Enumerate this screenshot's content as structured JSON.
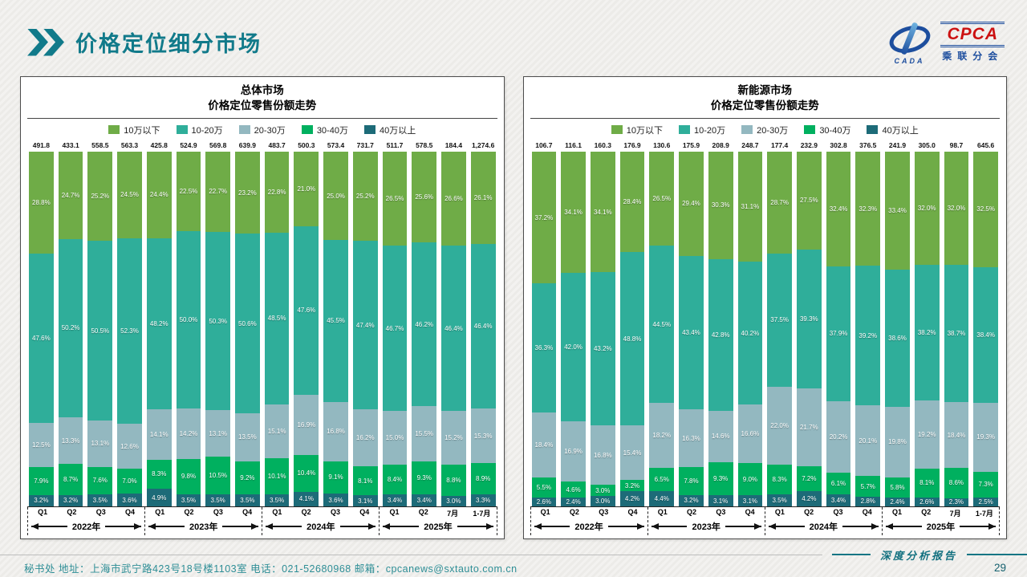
{
  "header": {
    "title": "价格定位细分市场",
    "logo": {
      "cpca": "CPCA",
      "sub_text": "乘联分会",
      "cada": "CADA"
    }
  },
  "legend": {
    "items": [
      {
        "label": "10万以下",
        "color": "#6fac47"
      },
      {
        "label": "10-20万",
        "color": "#2fae9a"
      },
      {
        "label": "20-30万",
        "color": "#93b8c0"
      },
      {
        "label": "30-40万",
        "color": "#00b05f"
      },
      {
        "label": "40万以上",
        "color": "#1d6b78"
      }
    ]
  },
  "x_axis": {
    "categories": [
      "Q1",
      "Q2",
      "Q3",
      "Q4",
      "Q1",
      "Q2",
      "Q3",
      "Q4",
      "Q1",
      "Q2",
      "Q3",
      "Q4",
      "Q1",
      "Q2",
      "7月",
      "1-7月"
    ],
    "year_groups": [
      {
        "label": "2022年"
      },
      {
        "label": "2023年"
      },
      {
        "label": "2024年"
      },
      {
        "label": "2025年"
      }
    ]
  },
  "chart_data": [
    {
      "type": "bar",
      "stacked": true,
      "title": "总体市场",
      "subtitle": "价格定位零售份额走势",
      "totals": [
        "491.8",
        "433.1",
        "558.5",
        "563.3",
        "425.8",
        "524.9",
        "569.8",
        "639.9",
        "483.7",
        "500.3",
        "573.4",
        "731.7",
        "511.7",
        "578.5",
        "184.4",
        "1,274.6"
      ],
      "series": [
        {
          "name": "10万以下",
          "values": [
            28.8,
            24.7,
            25.2,
            24.5,
            24.4,
            22.5,
            22.7,
            23.2,
            22.8,
            21.0,
            25.0,
            25.2,
            26.5,
            25.6,
            26.6,
            26.1
          ]
        },
        {
          "name": "10-20万",
          "values": [
            47.6,
            50.2,
            50.5,
            52.3,
            48.2,
            50.0,
            50.3,
            50.6,
            48.5,
            47.6,
            45.5,
            47.4,
            46.7,
            46.2,
            46.4,
            46.4
          ]
        },
        {
          "name": "20-30万",
          "values": [
            12.5,
            13.3,
            13.1,
            12.6,
            14.1,
            14.2,
            13.1,
            13.5,
            15.1,
            16.9,
            16.8,
            16.2,
            15.0,
            15.5,
            15.2,
            15.3
          ]
        },
        {
          "name": "30-40万",
          "values": [
            7.9,
            8.7,
            7.6,
            7.0,
            8.3,
            9.8,
            10.5,
            9.2,
            10.1,
            10.4,
            9.1,
            8.1,
            8.4,
            9.3,
            8.8,
            8.9
          ]
        },
        {
          "name": "40万以上",
          "values": [
            3.2,
            3.2,
            3.5,
            3.6,
            4.9,
            3.5,
            3.5,
            3.5,
            3.5,
            4.1,
            3.6,
            3.1,
            3.4,
            3.4,
            3.0,
            3.3
          ]
        }
      ]
    },
    {
      "type": "bar",
      "stacked": true,
      "title": "新能源市场",
      "subtitle": "价格定位零售份额走势",
      "totals": [
        "106.7",
        "116.1",
        "160.3",
        "176.9",
        "130.6",
        "175.9",
        "208.9",
        "248.7",
        "177.4",
        "232.9",
        "302.8",
        "376.5",
        "241.9",
        "305.0",
        "98.7",
        "645.6"
      ],
      "series": [
        {
          "name": "10万以下",
          "values": [
            37.2,
            34.1,
            34.1,
            28.4,
            26.5,
            29.4,
            30.3,
            31.1,
            28.7,
            27.5,
            32.4,
            32.3,
            33.4,
            32.0,
            32.0,
            32.5
          ]
        },
        {
          "name": "10-20万",
          "values": [
            36.3,
            42.0,
            43.2,
            48.8,
            44.5,
            43.4,
            42.8,
            40.2,
            37.5,
            39.3,
            37.9,
            39.2,
            38.6,
            38.2,
            38.7,
            38.4
          ]
        },
        {
          "name": "20-30万",
          "values": [
            18.4,
            16.9,
            16.8,
            15.4,
            18.2,
            16.3,
            14.6,
            16.6,
            22.0,
            21.7,
            20.2,
            20.1,
            19.8,
            19.2,
            18.4,
            19.3
          ]
        },
        {
          "name": "30-40万",
          "values": [
            5.5,
            4.6,
            3.0,
            3.2,
            6.5,
            7.8,
            9.3,
            9.0,
            8.3,
            7.2,
            6.1,
            5.7,
            5.8,
            8.1,
            8.6,
            7.3
          ]
        },
        {
          "name": "40万以上",
          "values": [
            2.6,
            2.4,
            3.0,
            4.2,
            4.4,
            3.2,
            3.1,
            3.1,
            3.5,
            4.2,
            3.4,
            2.8,
            2.4,
            2.6,
            2.3,
            2.5
          ]
        }
      ]
    }
  ],
  "footer": {
    "info": "秘书处   地址：上海市武宁路423号18号楼1103室 电话：021-52680968   邮箱：cpcanews@sxtauto.com.cn",
    "report_label": "深度分析报告",
    "page_number": "29"
  }
}
